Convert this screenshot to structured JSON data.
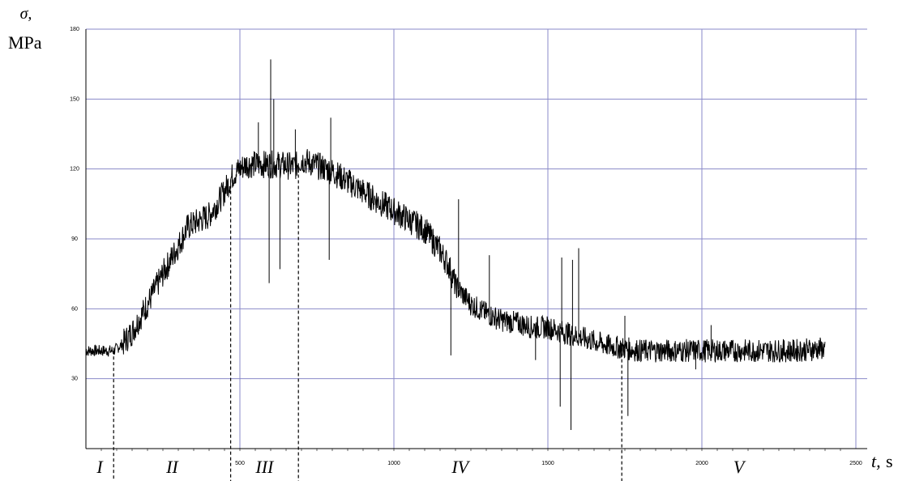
{
  "chart_data": {
    "type": "line",
    "title": "",
    "ylabel_symbol": "σ,",
    "ylabel_unit": "MPa",
    "xlabel_symbol": "t,",
    "xlabel_unit": "s",
    "xlim": [
      0,
      2500
    ],
    "ylim": [
      0,
      180
    ],
    "x_ticks": [
      500,
      1000,
      1500,
      2000,
      2500
    ],
    "y_ticks": [
      30,
      60,
      90,
      120,
      150,
      180
    ],
    "x_tick_labels": [
      "500",
      "1000",
      "1500",
      "2000",
      "2500"
    ],
    "y_tick_labels": [
      "30",
      "60",
      "90",
      "120",
      "150",
      "180"
    ],
    "grid": true,
    "line_color": "#000000",
    "grid_color": "#8a8ac8",
    "series": [
      {
        "x": [
          0,
          50,
          90,
          120,
          150,
          200,
          250,
          300,
          330,
          370,
          400,
          440,
          480,
          520,
          560,
          620,
          680,
          700,
          760,
          800,
          880,
          950,
          1000,
          1050,
          1100,
          1150,
          1180,
          1200,
          1250,
          1300,
          1350,
          1400,
          1450,
          1500,
          1550,
          1600,
          1650,
          1700,
          1750,
          1800,
          1900,
          2000,
          2100,
          2200,
          2300,
          2400
        ],
        "y": [
          42,
          42,
          42,
          45,
          50,
          62,
          75,
          87,
          95,
          98,
          100,
          108,
          118,
          122,
          122,
          122,
          121,
          124,
          121,
          119,
          112,
          106,
          102,
          98,
          94,
          85,
          78,
          70,
          62,
          58,
          55,
          54,
          52,
          52,
          50,
          48,
          46,
          44,
          43,
          42,
          42,
          42,
          42,
          42,
          42,
          43
        ]
      }
    ],
    "spikes": [
      {
        "x": 600,
        "y": 167
      },
      {
        "x": 595,
        "y": 71
      },
      {
        "x": 630,
        "y": 77
      },
      {
        "x": 560,
        "y": 140
      },
      {
        "x": 610,
        "y": 150
      },
      {
        "x": 680,
        "y": 137
      },
      {
        "x": 795,
        "y": 142
      },
      {
        "x": 790,
        "y": 81
      },
      {
        "x": 1210,
        "y": 107
      },
      {
        "x": 1185,
        "y": 40
      },
      {
        "x": 1540,
        "y": 18
      },
      {
        "x": 1545,
        "y": 82
      },
      {
        "x": 1575,
        "y": 8
      },
      {
        "x": 1600,
        "y": 86
      },
      {
        "x": 1580,
        "y": 81
      },
      {
        "x": 1760,
        "y": 14
      },
      {
        "x": 1750,
        "y": 57
      },
      {
        "x": 1310,
        "y": 83
      },
      {
        "x": 1460,
        "y": 38
      },
      {
        "x": 1980,
        "y": 34
      },
      {
        "x": 2030,
        "y": 53
      }
    ],
    "stage_boundaries": [
      90,
      470,
      690,
      1740
    ],
    "stages": [
      "I",
      "II",
      "III",
      "IV",
      "V"
    ]
  }
}
